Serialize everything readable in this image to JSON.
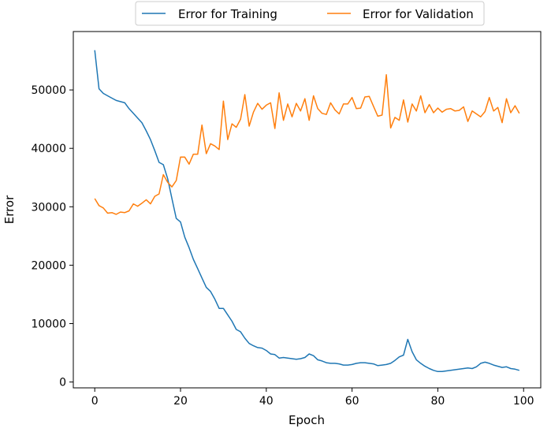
{
  "chart_data": {
    "type": "line",
    "title": "",
    "xlabel": "Epoch",
    "ylabel": "Error",
    "xlim": [
      -5,
      104
    ],
    "ylim": [
      -1000,
      60000
    ],
    "xticks": [
      0,
      20,
      40,
      60,
      80,
      100
    ],
    "yticks": [
      0,
      10000,
      20000,
      30000,
      40000,
      50000
    ],
    "grid": false,
    "legend_placement": "top-center-outside",
    "series": [
      {
        "name": "Error for Training",
        "color": "#1f77b4",
        "values": [
          56800,
          50200,
          49400,
          49000,
          48600,
          48200,
          48000,
          47800,
          46800,
          46000,
          45200,
          44400,
          43000,
          41500,
          39600,
          37600,
          37200,
          34800,
          31400,
          28000,
          27400,
          24800,
          23000,
          21000,
          19400,
          17800,
          16200,
          15500,
          14200,
          12600,
          12600,
          11500,
          10400,
          9000,
          8600,
          7500,
          6600,
          6200,
          5900,
          5800,
          5400,
          4800,
          4700,
          4100,
          4200,
          4100,
          4000,
          3900,
          4000,
          4200,
          4800,
          4500,
          3800,
          3600,
          3300,
          3200,
          3200,
          3100,
          2900,
          2900,
          3000,
          3200,
          3300,
          3300,
          3200,
          3100,
          2800,
          2900,
          3000,
          3200,
          3700,
          4300,
          4600,
          7300,
          5200,
          3800,
          3200,
          2700,
          2300,
          2000,
          1800,
          1800,
          1900,
          2000,
          2100,
          2200,
          2300,
          2400,
          2300,
          2600,
          3200,
          3400,
          3200,
          2900,
          2700,
          2500,
          2600,
          2300,
          2200,
          2000
        ]
      },
      {
        "name": "Error for Validation",
        "color": "#ff7f0e",
        "values": [
          31400,
          30200,
          29800,
          28900,
          29000,
          28700,
          29100,
          29000,
          29300,
          30500,
          30100,
          30600,
          31200,
          30500,
          31800,
          32200,
          35500,
          34200,
          33400,
          34500,
          38500,
          38500,
          37300,
          39000,
          39000,
          44000,
          39100,
          40800,
          40400,
          39800,
          48100,
          41500,
          44200,
          43600,
          45000,
          49200,
          43800,
          46200,
          47700,
          46700,
          47400,
          47800,
          43400,
          49500,
          44800,
          47600,
          45400,
          47700,
          46400,
          48500,
          44800,
          49000,
          46800,
          46000,
          45800,
          47800,
          46600,
          45900,
          47600,
          47600,
          48700,
          46800,
          46900,
          48800,
          48900,
          47200,
          45500,
          45700,
          52600,
          43500,
          45300,
          44800,
          48300,
          44500,
          47600,
          46400,
          49000,
          46100,
          47500,
          46100,
          46900,
          46200,
          46700,
          46800,
          46400,
          46500,
          47100,
          44600,
          46400,
          45900,
          45400,
          46300,
          48700,
          46400,
          47000,
          44400,
          48500,
          46100,
          47300,
          46000
        ]
      }
    ]
  }
}
